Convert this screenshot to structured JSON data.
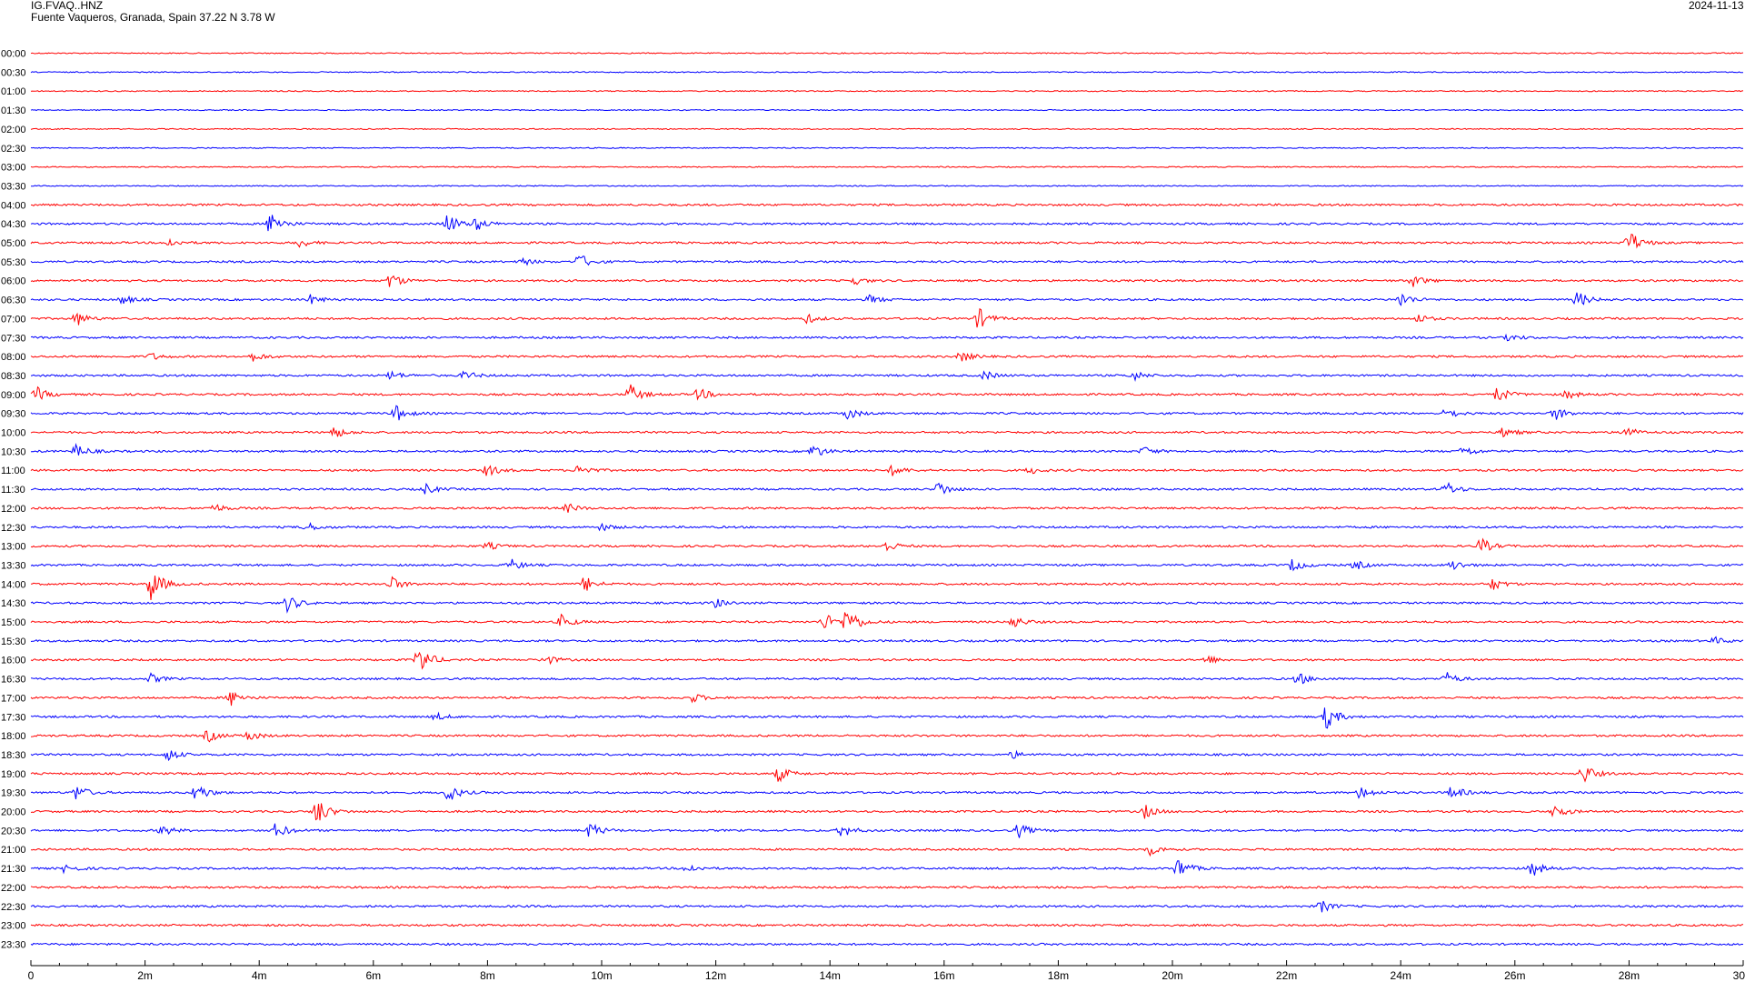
{
  "header": {
    "station": "IG.FVAQ..HNZ",
    "location": "Fuente Vaqueros, Granada, Spain  37.22 N 3.78 W",
    "date": "2024-11-13"
  },
  "chart_data": {
    "type": "helicorder",
    "row_labels": [
      "00:00",
      "00:30",
      "01:00",
      "01:30",
      "02:00",
      "02:30",
      "03:00",
      "03:30",
      "04:00",
      "04:30",
      "05:00",
      "05:30",
      "06:00",
      "06:30",
      "07:00",
      "07:30",
      "08:00",
      "08:30",
      "09:00",
      "09:30",
      "10:00",
      "10:30",
      "11:00",
      "11:30",
      "12:00",
      "12:30",
      "13:00",
      "13:30",
      "14:00",
      "14:30",
      "15:00",
      "15:30",
      "16:00",
      "16:30",
      "17:00",
      "17:30",
      "18:00",
      "18:30",
      "19:00",
      "19:30",
      "20:00",
      "20:30",
      "21:00",
      "21:30",
      "22:00",
      "22:30",
      "23:00",
      "23:30"
    ],
    "x_tick_labels": [
      "0",
      "2m",
      "4m",
      "6m",
      "8m",
      "10m",
      "12m",
      "14m",
      "16m",
      "18m",
      "20m",
      "22m",
      "24m",
      "26m",
      "28m",
      "30"
    ],
    "x_range_minutes": [
      0,
      30
    ],
    "colors": {
      "even_rows": "#ff0000",
      "odd_rows": "#0000ff"
    },
    "events": [
      {
        "row": 9,
        "minute": 4.2,
        "amp": 14
      },
      {
        "row": 9,
        "minute": 7.3,
        "amp": 12
      },
      {
        "row": 9,
        "minute": 7.8,
        "amp": 7
      },
      {
        "row": 10,
        "minute": 2.4,
        "amp": 5
      },
      {
        "row": 10,
        "minute": 4.7,
        "amp": 5
      },
      {
        "row": 10,
        "minute": 28.0,
        "amp": 14
      },
      {
        "row": 11,
        "minute": 9.6,
        "amp": 9
      },
      {
        "row": 11,
        "minute": 8.6,
        "amp": 4
      },
      {
        "row": 12,
        "minute": 6.3,
        "amp": 9
      },
      {
        "row": 12,
        "minute": 14.4,
        "amp": 5
      },
      {
        "row": 12,
        "minute": 24.2,
        "amp": 7
      },
      {
        "row": 13,
        "minute": 1.6,
        "amp": 5
      },
      {
        "row": 13,
        "minute": 4.9,
        "amp": 5
      },
      {
        "row": 13,
        "minute": 14.7,
        "amp": 5
      },
      {
        "row": 13,
        "minute": 24.0,
        "amp": 8
      },
      {
        "row": 13,
        "minute": 27.1,
        "amp": 9
      },
      {
        "row": 14,
        "minute": 0.8,
        "amp": 8
      },
      {
        "row": 14,
        "minute": 13.6,
        "amp": 5
      },
      {
        "row": 14,
        "minute": 16.6,
        "amp": 12
      },
      {
        "row": 14,
        "minute": 24.3,
        "amp": 5
      },
      {
        "row": 15,
        "minute": 25.9,
        "amp": 4
      },
      {
        "row": 16,
        "minute": 2.1,
        "amp": 4
      },
      {
        "row": 16,
        "minute": 3.9,
        "amp": 5
      },
      {
        "row": 16,
        "minute": 16.3,
        "amp": 6
      },
      {
        "row": 17,
        "minute": 6.3,
        "amp": 5
      },
      {
        "row": 17,
        "minute": 7.6,
        "amp": 5
      },
      {
        "row": 17,
        "minute": 16.7,
        "amp": 5
      },
      {
        "row": 17,
        "minute": 19.3,
        "amp": 6
      },
      {
        "row": 18,
        "minute": 0.1,
        "amp": 8
      },
      {
        "row": 18,
        "minute": 10.5,
        "amp": 11
      },
      {
        "row": 18,
        "minute": 11.7,
        "amp": 7
      },
      {
        "row": 18,
        "minute": 25.7,
        "amp": 9
      },
      {
        "row": 18,
        "minute": 26.9,
        "amp": 5
      },
      {
        "row": 19,
        "minute": 6.4,
        "amp": 9
      },
      {
        "row": 19,
        "minute": 14.3,
        "amp": 7
      },
      {
        "row": 19,
        "minute": 24.8,
        "amp": 6
      },
      {
        "row": 19,
        "minute": 26.7,
        "amp": 8
      },
      {
        "row": 20,
        "minute": 5.3,
        "amp": 7
      },
      {
        "row": 20,
        "minute": 25.8,
        "amp": 6
      },
      {
        "row": 20,
        "minute": 27.9,
        "amp": 8
      },
      {
        "row": 21,
        "minute": 0.8,
        "amp": 8
      },
      {
        "row": 21,
        "minute": 13.7,
        "amp": 8
      },
      {
        "row": 21,
        "minute": 19.5,
        "amp": 5
      },
      {
        "row": 21,
        "minute": 25.1,
        "amp": 6
      },
      {
        "row": 22,
        "minute": 8.0,
        "amp": 7
      },
      {
        "row": 22,
        "minute": 9.6,
        "amp": 7
      },
      {
        "row": 22,
        "minute": 15.1,
        "amp": 6
      },
      {
        "row": 22,
        "minute": 17.5,
        "amp": 4
      },
      {
        "row": 23,
        "minute": 6.9,
        "amp": 6
      },
      {
        "row": 23,
        "minute": 15.9,
        "amp": 9
      },
      {
        "row": 23,
        "minute": 24.8,
        "amp": 8
      },
      {
        "row": 24,
        "minute": 3.2,
        "amp": 5
      },
      {
        "row": 24,
        "minute": 9.4,
        "amp": 5
      },
      {
        "row": 25,
        "minute": 4.8,
        "amp": 6
      },
      {
        "row": 25,
        "minute": 10.0,
        "amp": 4
      },
      {
        "row": 26,
        "minute": 15.0,
        "amp": 6
      },
      {
        "row": 26,
        "minute": 25.4,
        "amp": 9
      },
      {
        "row": 26,
        "minute": 8.0,
        "amp": 4
      },
      {
        "row": 27,
        "minute": 22.1,
        "amp": 7
      },
      {
        "row": 27,
        "minute": 23.2,
        "amp": 5
      },
      {
        "row": 27,
        "minute": 24.9,
        "amp": 6
      },
      {
        "row": 27,
        "minute": 8.4,
        "amp": 7
      },
      {
        "row": 28,
        "minute": 2.1,
        "amp": 20
      },
      {
        "row": 28,
        "minute": 6.3,
        "amp": 9
      },
      {
        "row": 28,
        "minute": 9.7,
        "amp": 9
      },
      {
        "row": 28,
        "minute": 25.6,
        "amp": 7
      },
      {
        "row": 29,
        "minute": 4.5,
        "amp": 10
      },
      {
        "row": 29,
        "minute": 12.0,
        "amp": 5
      },
      {
        "row": 30,
        "minute": 13.9,
        "amp": 10
      },
      {
        "row": 30,
        "minute": 14.3,
        "amp": 18
      },
      {
        "row": 30,
        "minute": 9.3,
        "amp": 8
      },
      {
        "row": 30,
        "minute": 17.2,
        "amp": 7
      },
      {
        "row": 31,
        "minute": 29.5,
        "amp": 4
      },
      {
        "row": 32,
        "minute": 6.8,
        "amp": 18
      },
      {
        "row": 32,
        "minute": 9.0,
        "amp": 6
      },
      {
        "row": 32,
        "minute": 20.6,
        "amp": 5
      },
      {
        "row": 33,
        "minute": 22.2,
        "amp": 7
      },
      {
        "row": 33,
        "minute": 24.8,
        "amp": 7
      },
      {
        "row": 33,
        "minute": 2.1,
        "amp": 5
      },
      {
        "row": 34,
        "minute": 3.5,
        "amp": 9
      },
      {
        "row": 34,
        "minute": 11.6,
        "amp": 5
      },
      {
        "row": 35,
        "minute": 22.7,
        "amp": 14
      },
      {
        "row": 35,
        "minute": 7.1,
        "amp": 4
      },
      {
        "row": 36,
        "minute": 3.1,
        "amp": 7
      },
      {
        "row": 36,
        "minute": 3.8,
        "amp": 6
      },
      {
        "row": 37,
        "minute": 2.4,
        "amp": 7
      },
      {
        "row": 37,
        "minute": 17.2,
        "amp": 4
      },
      {
        "row": 38,
        "minute": 13.1,
        "amp": 9
      },
      {
        "row": 38,
        "minute": 27.2,
        "amp": 11
      },
      {
        "row": 39,
        "minute": 0.8,
        "amp": 9
      },
      {
        "row": 39,
        "minute": 2.9,
        "amp": 11
      },
      {
        "row": 39,
        "minute": 7.3,
        "amp": 11
      },
      {
        "row": 39,
        "minute": 23.3,
        "amp": 8
      },
      {
        "row": 39,
        "minute": 24.9,
        "amp": 8
      },
      {
        "row": 40,
        "minute": 5.0,
        "amp": 17
      },
      {
        "row": 40,
        "minute": 19.5,
        "amp": 8
      },
      {
        "row": 40,
        "minute": 26.7,
        "amp": 8
      },
      {
        "row": 41,
        "minute": 2.3,
        "amp": 6
      },
      {
        "row": 41,
        "minute": 4.3,
        "amp": 9
      },
      {
        "row": 41,
        "minute": 9.8,
        "amp": 9
      },
      {
        "row": 41,
        "minute": 14.2,
        "amp": 8
      },
      {
        "row": 41,
        "minute": 17.3,
        "amp": 8
      },
      {
        "row": 42,
        "minute": 19.6,
        "amp": 6
      },
      {
        "row": 43,
        "minute": 0.6,
        "amp": 5
      },
      {
        "row": 43,
        "minute": 11.5,
        "amp": 5
      },
      {
        "row": 43,
        "minute": 20.1,
        "amp": 12
      },
      {
        "row": 43,
        "minute": 26.3,
        "amp": 9
      },
      {
        "row": 45,
        "minute": 22.6,
        "amp": 7
      }
    ]
  }
}
